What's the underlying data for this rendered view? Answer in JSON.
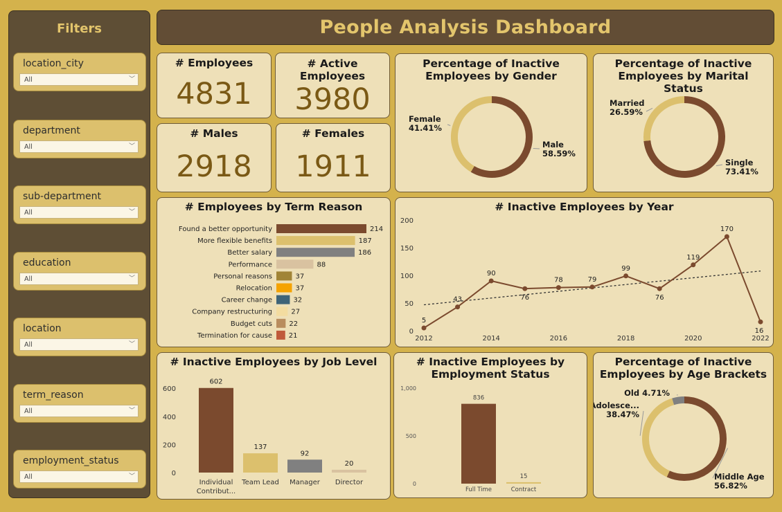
{
  "sidebar": {
    "title": "Filters",
    "slicers": [
      {
        "label": "location_city",
        "value": "All"
      },
      {
        "label": "department",
        "value": "All"
      },
      {
        "label": "sub-department",
        "value": "All"
      },
      {
        "label": "education",
        "value": "All"
      },
      {
        "label": "location",
        "value": "All"
      },
      {
        "label": "term_reason",
        "value": "All"
      },
      {
        "label": "employment_status",
        "value": "All"
      }
    ]
  },
  "header": {
    "title": "People Analysis Dashboard"
  },
  "kpis": {
    "employees": {
      "label": "# Employees",
      "value": "4831"
    },
    "active": {
      "label": "# Active Employees",
      "value": "3980"
    },
    "males": {
      "label": "# Males",
      "value": "2918"
    },
    "females": {
      "label": "# Females",
      "value": "1911"
    }
  },
  "colors": {
    "brown": "#7b4a2e",
    "tan": "#dcc06d",
    "gray": "#808080",
    "beige": "#d9c2a0",
    "olive": "#a18436",
    "orange": "#f5a300",
    "teal": "#3e6478",
    "cream": "#f3dca0",
    "camel": "#b98d5e",
    "rust": "#c05a3a"
  },
  "chart_data": [
    {
      "id": "gender",
      "type": "pie",
      "title": "Percentage of Inactive Employees by Gender",
      "slices": [
        {
          "label": "Male",
          "value": 58.59,
          "display": "58.59%",
          "color": "#7b4a2e"
        },
        {
          "label": "Female",
          "value": 41.41,
          "display": "41.41%",
          "color": "#dcc06d"
        }
      ]
    },
    {
      "id": "marital",
      "type": "pie",
      "title": "Percentage of Inactive Employees by Marital Status",
      "slices": [
        {
          "label": "Single",
          "value": 73.41,
          "display": "73.41%",
          "color": "#7b4a2e"
        },
        {
          "label": "Married",
          "value": 26.59,
          "display": "26.59%",
          "color": "#dcc06d"
        }
      ]
    },
    {
      "id": "term",
      "type": "bar",
      "orientation": "horizontal",
      "title": "# Employees by Term Reason",
      "categories": [
        "Found a better opportunity",
        "More flexible benefits",
        "Better salary",
        "Performance",
        "Personal reasons",
        "Relocation",
        "Career change",
        "Company restructuring",
        "Budget cuts",
        "Termination for cause"
      ],
      "values": [
        214,
        187,
        186,
        88,
        37,
        37,
        32,
        27,
        22,
        21
      ],
      "colors": [
        "#7b4a2e",
        "#dcc06d",
        "#808080",
        "#d9c2a0",
        "#a18436",
        "#f5a300",
        "#3e6478",
        "#f3dca0",
        "#b98d5e",
        "#c05a3a"
      ]
    },
    {
      "id": "year",
      "type": "line",
      "title": "# Inactive Employees by Year",
      "x": [
        2012,
        2013,
        2014,
        2015,
        2016,
        2017,
        2018,
        2019,
        2020,
        2021,
        2022
      ],
      "values": [
        5,
        43,
        90,
        76,
        78,
        79,
        99,
        76,
        119,
        170,
        16
      ],
      "x_ticks": [
        2012,
        2014,
        2016,
        2018,
        2020,
        2022
      ],
      "y_ticks": [
        0,
        50,
        100,
        150,
        200
      ],
      "ylim": [
        0,
        200
      ],
      "trendline": true
    },
    {
      "id": "joblevel",
      "type": "bar",
      "title": "# Inactive Employees by Job Level",
      "categories": [
        "Individual Contribut...",
        "Team Lead",
        "Manager",
        "Director"
      ],
      "values": [
        602,
        137,
        92,
        20
      ],
      "colors": [
        "#7b4a2e",
        "#dcc06d",
        "#808080",
        "#d9c2a0"
      ],
      "y_ticks": [
        0,
        200,
        400,
        600
      ],
      "ylim": [
        0,
        650
      ]
    },
    {
      "id": "empstatus",
      "type": "bar",
      "title": "# Inactive Employees by Employment Status",
      "categories": [
        "Full Time",
        "Contract"
      ],
      "values": [
        836,
        15
      ],
      "colors": [
        "#7b4a2e",
        "#dcc06d"
      ],
      "y_ticks": [
        0,
        500,
        1000
      ],
      "y_tick_labels": [
        "0",
        "500",
        "1,000"
      ],
      "ylim": [
        0,
        1000
      ]
    },
    {
      "id": "age",
      "type": "pie",
      "title": "Percentage of Inactive Employees by Age Brackets",
      "slices": [
        {
          "label": "Middle Age",
          "value": 56.82,
          "display": "56.82%",
          "color": "#7b4a2e"
        },
        {
          "label": "Adolesce...",
          "value": 38.47,
          "display": "38.47%",
          "color": "#dcc06d"
        },
        {
          "label": "Old",
          "value": 4.71,
          "display": "4.71%",
          "color": "#808080"
        }
      ]
    }
  ]
}
